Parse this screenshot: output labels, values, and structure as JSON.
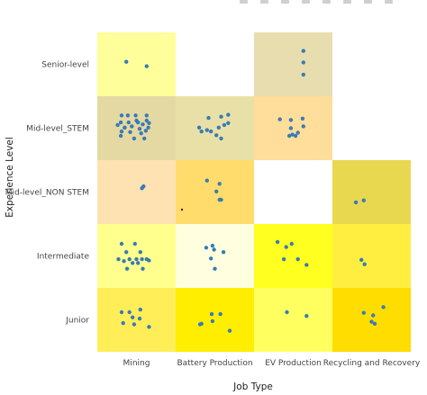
{
  "chart_data": {
    "type": "heatmap",
    "x_title": "Job Type",
    "y_title": "Experience Level",
    "x_categories": [
      "Mining",
      "Battery Production",
      "EV Production",
      "Recycling and Recovery"
    ],
    "y_categories": [
      "Senior-level",
      "Mid-level_STEM",
      "Mid-level_NON STEM",
      "Intermediate",
      "Junior"
    ],
    "cells": [
      {
        "x": "Mining",
        "y": "Senior-level",
        "color": "#fefe9a",
        "points": 2
      },
      {
        "x": "EV Production",
        "y": "Senior-level",
        "color": "#e8ddae",
        "points": 3
      },
      {
        "x": "Mining",
        "y": "Mid-level_STEM",
        "color": "#e4d9a2",
        "points": 24
      },
      {
        "x": "Battery Production",
        "y": "Mid-level_STEM",
        "color": "#e9e0a8",
        "points": 12
      },
      {
        "x": "EV Production",
        "y": "Mid-level_STEM",
        "color": "#ffdd9a",
        "points": 9
      },
      {
        "x": "Mining",
        "y": "Mid-level_NON STEM",
        "color": "#ffe2b2",
        "points": 2
      },
      {
        "x": "Battery Production",
        "y": "Mid-level_NON STEM",
        "color": "#ffdc6c",
        "points": 5
      },
      {
        "x": "Recycling and Recovery",
        "y": "Mid-level_NON STEM",
        "color": "#e8d850",
        "points": 2
      },
      {
        "x": "Mining",
        "y": "Intermediate",
        "color": "#ffff8e",
        "points": 15
      },
      {
        "x": "Battery Production",
        "y": "Intermediate",
        "color": "#ffffe0",
        "points": 6
      },
      {
        "x": "EV Production",
        "y": "Intermediate",
        "color": "#ffff20",
        "points": 6
      },
      {
        "x": "Recycling and Recovery",
        "y": "Intermediate",
        "color": "#ffee40",
        "points": 2
      },
      {
        "x": "Mining",
        "y": "Junior",
        "color": "#ffee58",
        "points": 8
      },
      {
        "x": "Battery Production",
        "y": "Junior",
        "color": "#ffee00",
        "points": 6
      },
      {
        "x": "EV Production",
        "y": "Junior",
        "color": "#ffff60",
        "points": 2
      },
      {
        "x": "Recycling and Recovery",
        "y": "Junior",
        "color": "#ffdd00",
        "points": 5
      }
    ],
    "point_color": "#3a7bb5",
    "legend": false,
    "grid": false
  }
}
